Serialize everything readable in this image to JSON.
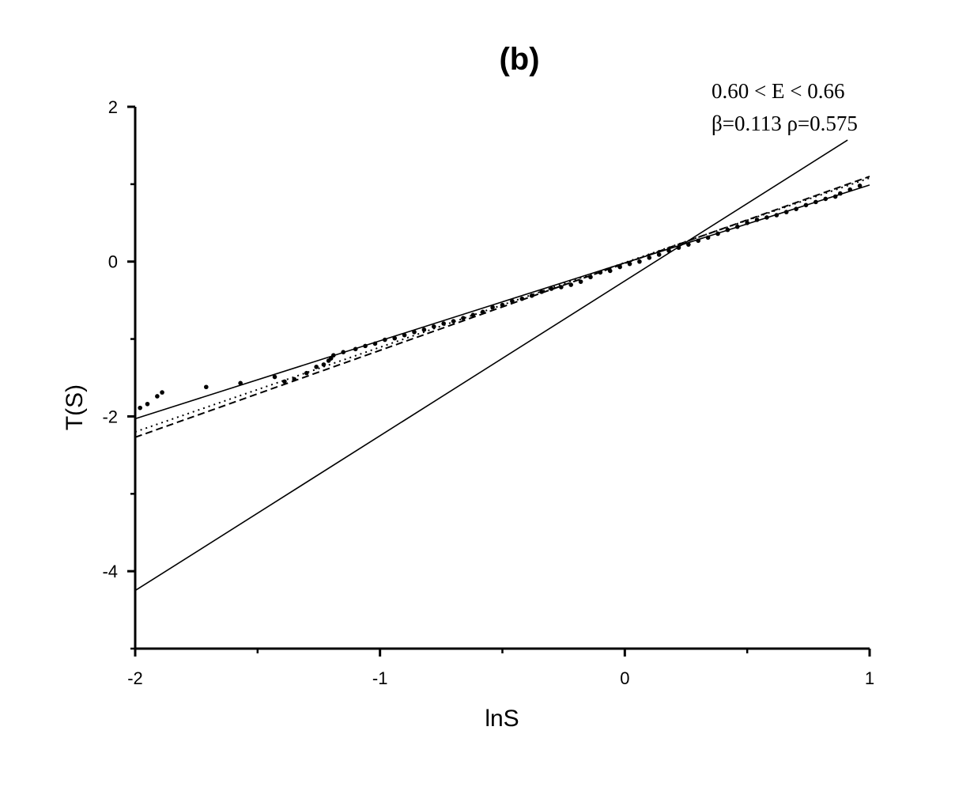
{
  "chart_data": {
    "type": "scatter",
    "title": "(b)",
    "xlabel": "lnS",
    "ylabel": "T(S)",
    "xlim": [
      -2,
      1
    ],
    "ylim": [
      -5,
      2
    ],
    "x_ticks": [
      -2,
      -1,
      0,
      1
    ],
    "x_tick_labels": [
      "-2",
      "-1",
      "0",
      "1"
    ],
    "y_ticks": [
      -4,
      -2,
      0,
      2
    ],
    "y_tick_labels": [
      "-4",
      "-2",
      "0",
      "2"
    ],
    "grid": false,
    "annotations": [
      "0.60 < E < 0.66",
      "β=0.113 ρ=0.575"
    ],
    "series": [
      {
        "style": "points",
        "x": [
          -1.98,
          -1.95,
          -1.91,
          -1.89,
          -1.71,
          -1.57,
          -1.43,
          -1.39,
          -1.35,
          -1.3,
          -1.26,
          -1.23,
          -1.21,
          -1.2,
          -1.19,
          -1.15,
          -1.1,
          -1.06,
          -1.02,
          -0.98,
          -0.94,
          -0.9,
          -0.86,
          -0.82,
          -0.78,
          -0.74,
          -0.7,
          -0.66,
          -0.62,
          -0.58,
          -0.54,
          -0.5,
          -0.46,
          -0.42,
          -0.38,
          -0.34,
          -0.3,
          -0.26,
          -0.22,
          -0.18,
          -0.14,
          -0.1,
          -0.06,
          -0.02,
          0.02,
          0.06,
          0.1,
          0.14,
          0.18,
          0.22,
          0.26,
          0.3,
          0.34,
          0.38,
          0.42,
          0.46,
          0.5,
          0.54,
          0.58,
          0.62,
          0.66,
          0.7,
          0.74,
          0.78,
          0.82,
          0.86,
          0.88,
          0.92,
          0.96
        ],
        "y": [
          -1.89,
          -1.84,
          -1.74,
          -1.69,
          -1.62,
          -1.57,
          -1.49,
          -1.55,
          -1.52,
          -1.44,
          -1.36,
          -1.33,
          -1.28,
          -1.25,
          -1.21,
          -1.17,
          -1.13,
          -1.09,
          -1.06,
          -1.01,
          -0.99,
          -0.95,
          -0.91,
          -0.88,
          -0.84,
          -0.8,
          -0.77,
          -0.73,
          -0.69,
          -0.65,
          -0.59,
          -0.56,
          -0.51,
          -0.48,
          -0.44,
          -0.39,
          -0.35,
          -0.33,
          -0.3,
          -0.26,
          -0.2,
          -0.14,
          -0.12,
          -0.07,
          -0.03,
          0.0,
          0.05,
          0.09,
          0.14,
          0.18,
          0.22,
          0.27,
          0.31,
          0.36,
          0.41,
          0.45,
          0.5,
          0.54,
          0.57,
          0.6,
          0.64,
          0.68,
          0.73,
          0.77,
          0.81,
          0.84,
          0.88,
          0.93,
          0.98
        ]
      },
      {
        "style": "solid",
        "x": [
          -2,
          1
        ],
        "y": [
          -2.03,
          0.99
        ]
      },
      {
        "style": "solid",
        "x": [
          -2,
          0.91
        ],
        "y": [
          -4.25,
          1.57
        ]
      },
      {
        "style": "dotted",
        "x": [
          -2,
          1
        ],
        "y": [
          -2.2,
          1.08
        ]
      },
      {
        "style": "dashed",
        "x": [
          -2,
          1
        ],
        "y": [
          -2.27,
          1.1
        ]
      }
    ]
  }
}
